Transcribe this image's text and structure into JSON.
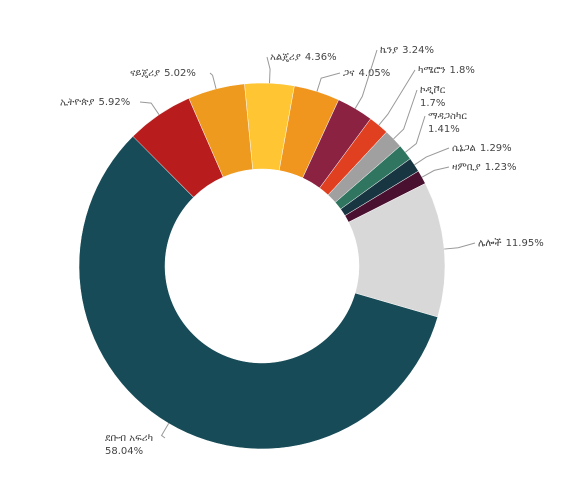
{
  "chart_data": {
    "type": "donut",
    "categories": [
      "አልጄሪያ",
      "ጋና",
      "ኬንያ",
      "ካሜሮን",
      "ኮዲቮር",
      "ማዳጋስካር",
      "ሴኔጋል",
      "ዛምቢያ",
      "ሌሎች",
      "ደቡብ አፍሪካ",
      "ኢትዮጵያ",
      "ናይጄሪያ"
    ],
    "values": [
      4.36,
      4.05,
      3.24,
      1.8,
      1.7,
      1.41,
      1.29,
      1.23,
      11.95,
      58.04,
      5.92,
      5.02
    ],
    "value_labels": [
      "4.36%",
      "4.05%",
      "3.24%",
      "1.8%",
      "1.7%",
      "1.41%",
      "1.29%",
      "1.23%",
      "11.95%",
      "58.04%",
      "5.92%",
      "5.02%"
    ],
    "colors": [
      "#ffc532",
      "#f0961e",
      "#8b2242",
      "#e0401f",
      "#a0a0a0",
      "#2f7560",
      "#183642",
      "#4a1030",
      "#d8d8d8",
      "#174b57",
      "#b81c1c",
      "#ee9a1e"
    ]
  }
}
